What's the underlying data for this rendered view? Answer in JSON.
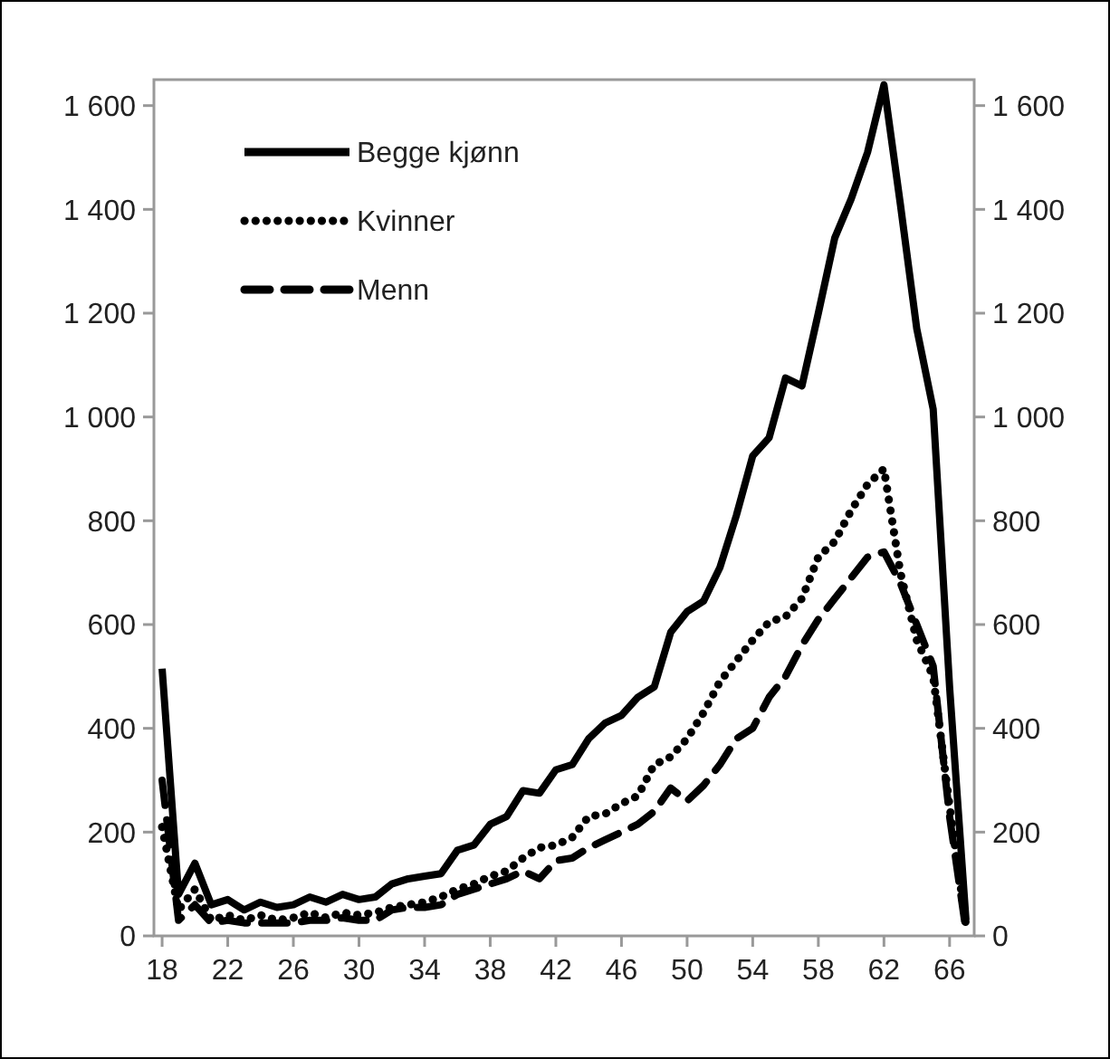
{
  "chart_data": {
    "type": "line",
    "x": [
      18,
      19,
      20,
      21,
      22,
      23,
      24,
      25,
      26,
      27,
      28,
      29,
      30,
      31,
      32,
      33,
      34,
      35,
      36,
      37,
      38,
      39,
      40,
      41,
      42,
      43,
      44,
      45,
      46,
      47,
      48,
      49,
      50,
      51,
      52,
      53,
      54,
      55,
      56,
      57,
      58,
      59,
      60,
      61,
      62,
      63,
      64,
      65,
      66,
      67
    ],
    "series": [
      {
        "name": "Begge kjønn",
        "color": "#000000",
        "line_style": "solid",
        "values": [
          515,
          80,
          140,
          60,
          70,
          50,
          65,
          55,
          60,
          75,
          65,
          80,
          70,
          75,
          100,
          110,
          115,
          120,
          165,
          175,
          215,
          230,
          280,
          275,
          320,
          330,
          380,
          410,
          425,
          460,
          480,
          585,
          625,
          645,
          710,
          810,
          925,
          960,
          1075,
          1060,
          1200,
          1345,
          1420,
          1510,
          1640,
          1410,
          1170,
          1015,
          480,
          30
        ]
      },
      {
        "name": "Kvinner",
        "color": "#000000",
        "line_style": "dotted",
        "values": [
          210,
          50,
          90,
          30,
          40,
          30,
          40,
          30,
          35,
          45,
          35,
          45,
          40,
          45,
          55,
          60,
          65,
          75,
          90,
          100,
          115,
          125,
          150,
          170,
          175,
          190,
          230,
          235,
          255,
          270,
          330,
          345,
          380,
          430,
          490,
          530,
          570,
          605,
          615,
          650,
          730,
          760,
          820,
          870,
          900,
          700,
          570,
          500,
          250,
          20
        ]
      },
      {
        "name": "Menn",
        "color": "#000000",
        "line_style": "dashed",
        "values": [
          300,
          30,
          60,
          25,
          30,
          25,
          25,
          25,
          25,
          30,
          30,
          35,
          30,
          30,
          50,
          55,
          55,
          60,
          80,
          90,
          100,
          110,
          125,
          110,
          145,
          150,
          170,
          185,
          200,
          215,
          240,
          285,
          260,
          290,
          330,
          380,
          400,
          460,
          500,
          560,
          610,
          650,
          690,
          730,
          740,
          680,
          600,
          520,
          230,
          10
        ]
      }
    ],
    "xlim": [
      17.5,
      67.5
    ],
    "xticks": [
      18,
      22,
      26,
      30,
      34,
      38,
      42,
      46,
      50,
      54,
      58,
      62,
      66
    ],
    "ylim": [
      0,
      1650
    ],
    "yticks": [
      {
        "value": 0,
        "label": "0"
      },
      {
        "value": 200,
        "label": "200"
      },
      {
        "value": 400,
        "label": "400"
      },
      {
        "value": 600,
        "label": "600"
      },
      {
        "value": 800,
        "label": "800"
      },
      {
        "value": 1000,
        "label": "1 000"
      },
      {
        "value": 1200,
        "label": "1 200"
      },
      {
        "value": 1400,
        "label": "1 400"
      },
      {
        "value": 1600,
        "label": "1 600"
      }
    ],
    "y2lim": [
      0,
      1650
    ],
    "y2ticks": [
      {
        "value": 0,
        "label": "0"
      },
      {
        "value": 200,
        "label": "200"
      },
      {
        "value": 400,
        "label": "400"
      },
      {
        "value": 600,
        "label": "600"
      },
      {
        "value": 800,
        "label": "800"
      },
      {
        "value": 1000,
        "label": "1 000"
      },
      {
        "value": 1200,
        "label": "1 200"
      },
      {
        "value": 1400,
        "label": "1 400"
      },
      {
        "value": 1600,
        "label": "1 600"
      }
    ],
    "grid": false,
    "legend": "top left"
  }
}
